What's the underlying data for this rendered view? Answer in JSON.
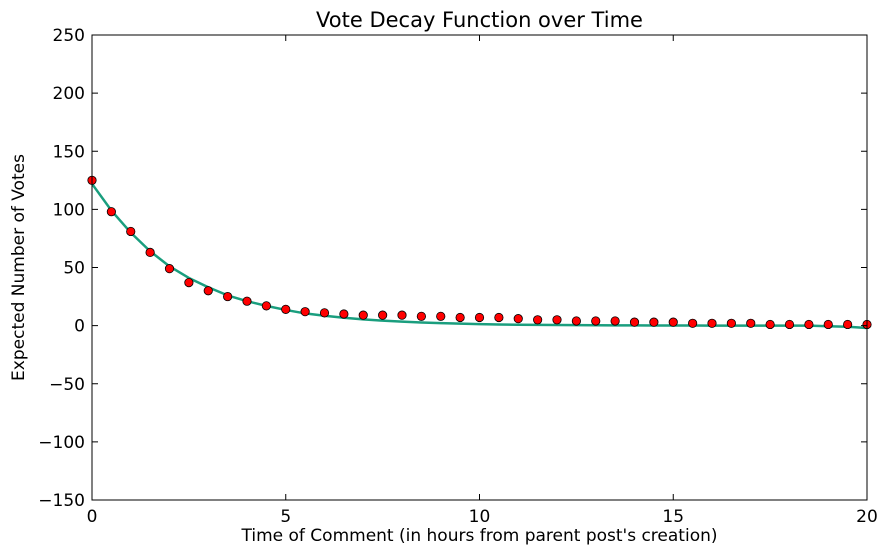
{
  "chart_data": {
    "type": "scatter",
    "title": "Vote Decay Function over Time",
    "xlabel": "Time of Comment (in hours from parent post's creation)",
    "ylabel": "Expected Number of Votes",
    "xlim": [
      0,
      20
    ],
    "ylim": [
      -150,
      250
    ],
    "xticks": [
      0,
      5,
      10,
      15,
      20
    ],
    "yticks": [
      -150,
      -100,
      -50,
      0,
      50,
      100,
      150,
      200,
      250
    ],
    "xtick_labels": [
      "0",
      "5",
      "10",
      "15",
      "20"
    ],
    "ytick_labels": [
      "−150",
      "−100",
      "−50",
      "0",
      "50",
      "100",
      "150",
      "200",
      "250"
    ],
    "grid": false,
    "legend": null,
    "series": [
      {
        "kind": "points",
        "color": "#ff0000",
        "edge_color": "#000000",
        "x": [
          0,
          0.5,
          1,
          1.5,
          2,
          2.5,
          3,
          3.5,
          4,
          4.5,
          5,
          5.5,
          6,
          6.5,
          7,
          7.5,
          8,
          8.5,
          9,
          9.5,
          10,
          10.5,
          11,
          11.5,
          12,
          12.5,
          13,
          13.5,
          14,
          14.5,
          15,
          15.5,
          16,
          16.5,
          17,
          17.5,
          18,
          18.5,
          19,
          19.5,
          20
        ],
        "y": [
          125,
          98,
          81,
          63,
          49,
          37,
          30,
          25,
          21,
          17,
          14,
          12,
          11,
          10,
          9,
          9,
          9,
          8,
          8,
          7,
          7,
          7,
          6,
          5,
          5,
          4,
          4,
          4,
          3,
          3,
          3,
          2,
          2,
          2,
          2,
          1,
          1,
          1,
          1,
          1,
          1
        ]
      },
      {
        "kind": "line",
        "color": "#1a9e7e",
        "x": [
          0,
          0.5,
          1,
          1.5,
          2,
          2.5,
          3,
          3.5,
          4,
          4.5,
          5,
          5.5,
          6,
          6.5,
          7,
          7.5,
          8,
          8.5,
          9,
          9.5,
          10,
          10.5,
          11,
          11.5,
          12,
          12.5,
          13,
          13.5,
          14,
          14.5,
          15,
          15.5,
          16,
          16.5,
          17,
          17.5,
          18,
          18.5,
          19,
          19.5,
          20
        ],
        "y": [
          122,
          99,
          80,
          64,
          51,
          41,
          33,
          26,
          21,
          17,
          13.5,
          10.5,
          8.5,
          6.8,
          5.4,
          4.3,
          3.4,
          2.7,
          2.1,
          1.7,
          1.3,
          1.0,
          0.8,
          0.6,
          0.5,
          0.4,
          0.3,
          0.2,
          0.2,
          0.1,
          0.1,
          0.1,
          0,
          0,
          0,
          0,
          0,
          0,
          -0.5,
          -1,
          -2
        ]
      }
    ]
  }
}
